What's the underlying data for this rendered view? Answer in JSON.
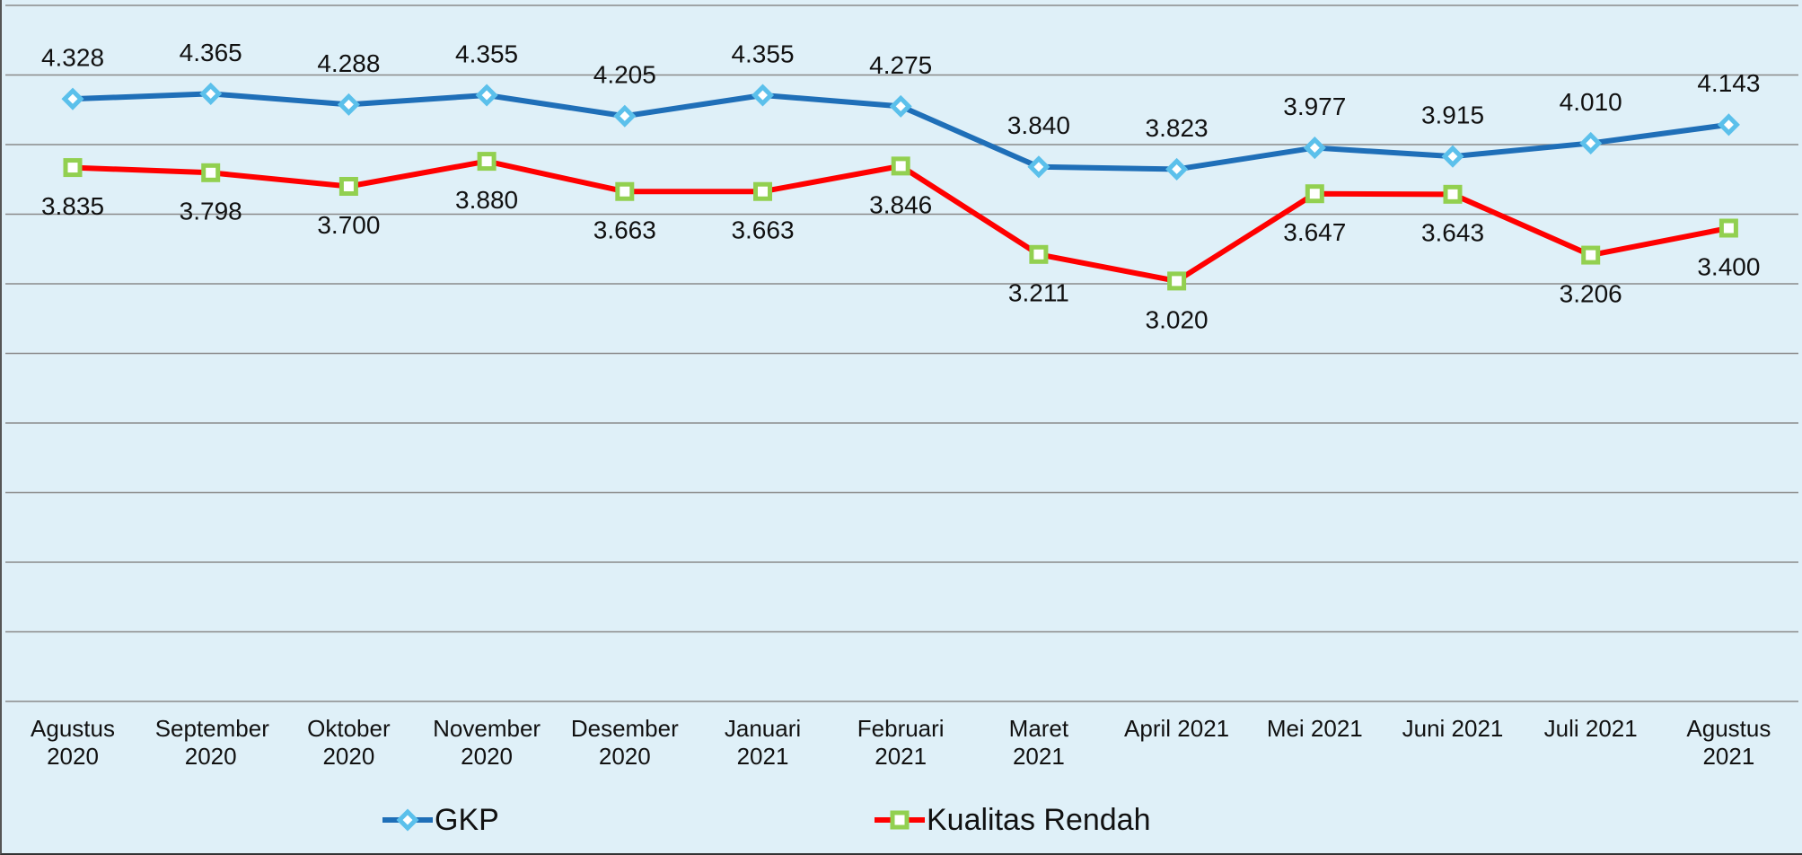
{
  "chart_data": {
    "type": "line",
    "categories": [
      "Agustus 2020",
      "September 2020",
      "Oktober 2020",
      "November 2020",
      "Desember 2020",
      "Januari 2021",
      "Februari 2021",
      "Maret 2021",
      "April 2021",
      "Mei 2021",
      "Juni 2021",
      "Juli 2021",
      "Agustus 2021"
    ],
    "series": [
      {
        "name": "GKP",
        "color": "#1f6fb8",
        "marker_color": "#5bc0eb",
        "marker": "diamond",
        "values": [
          4328,
          4365,
          4288,
          4355,
          4205,
          4355,
          4275,
          3840,
          3823,
          3977,
          3915,
          4010,
          4143
        ],
        "value_labels": [
          "4.328",
          "4.365",
          "4.288",
          "4.355",
          "4.205",
          "4.355",
          "4.275",
          "3.840",
          "3.823",
          "3.977",
          "3.915",
          "4.010",
          "4.143"
        ]
      },
      {
        "name": "Kualitas Rendah",
        "color": "#ff0000",
        "marker_color": "#92d050",
        "marker": "square",
        "values": [
          3835,
          3798,
          3700,
          3880,
          3663,
          3663,
          3846,
          3211,
          3020,
          3647,
          3643,
          3206,
          3400
        ],
        "value_labels": [
          "3.835",
          "3.798",
          "3.700",
          "3.880",
          "3.663",
          "3.663",
          "3.846",
          "3.211",
          "3.020",
          "3.647",
          "3.643",
          "3.206",
          "3.400"
        ]
      }
    ],
    "ylim": [
      0,
      5000
    ],
    "yticks": [
      0,
      500,
      1000,
      1500,
      2000,
      2500,
      3000,
      3500,
      4000,
      4500,
      5000
    ],
    "grid": true,
    "legend": "bottom"
  }
}
